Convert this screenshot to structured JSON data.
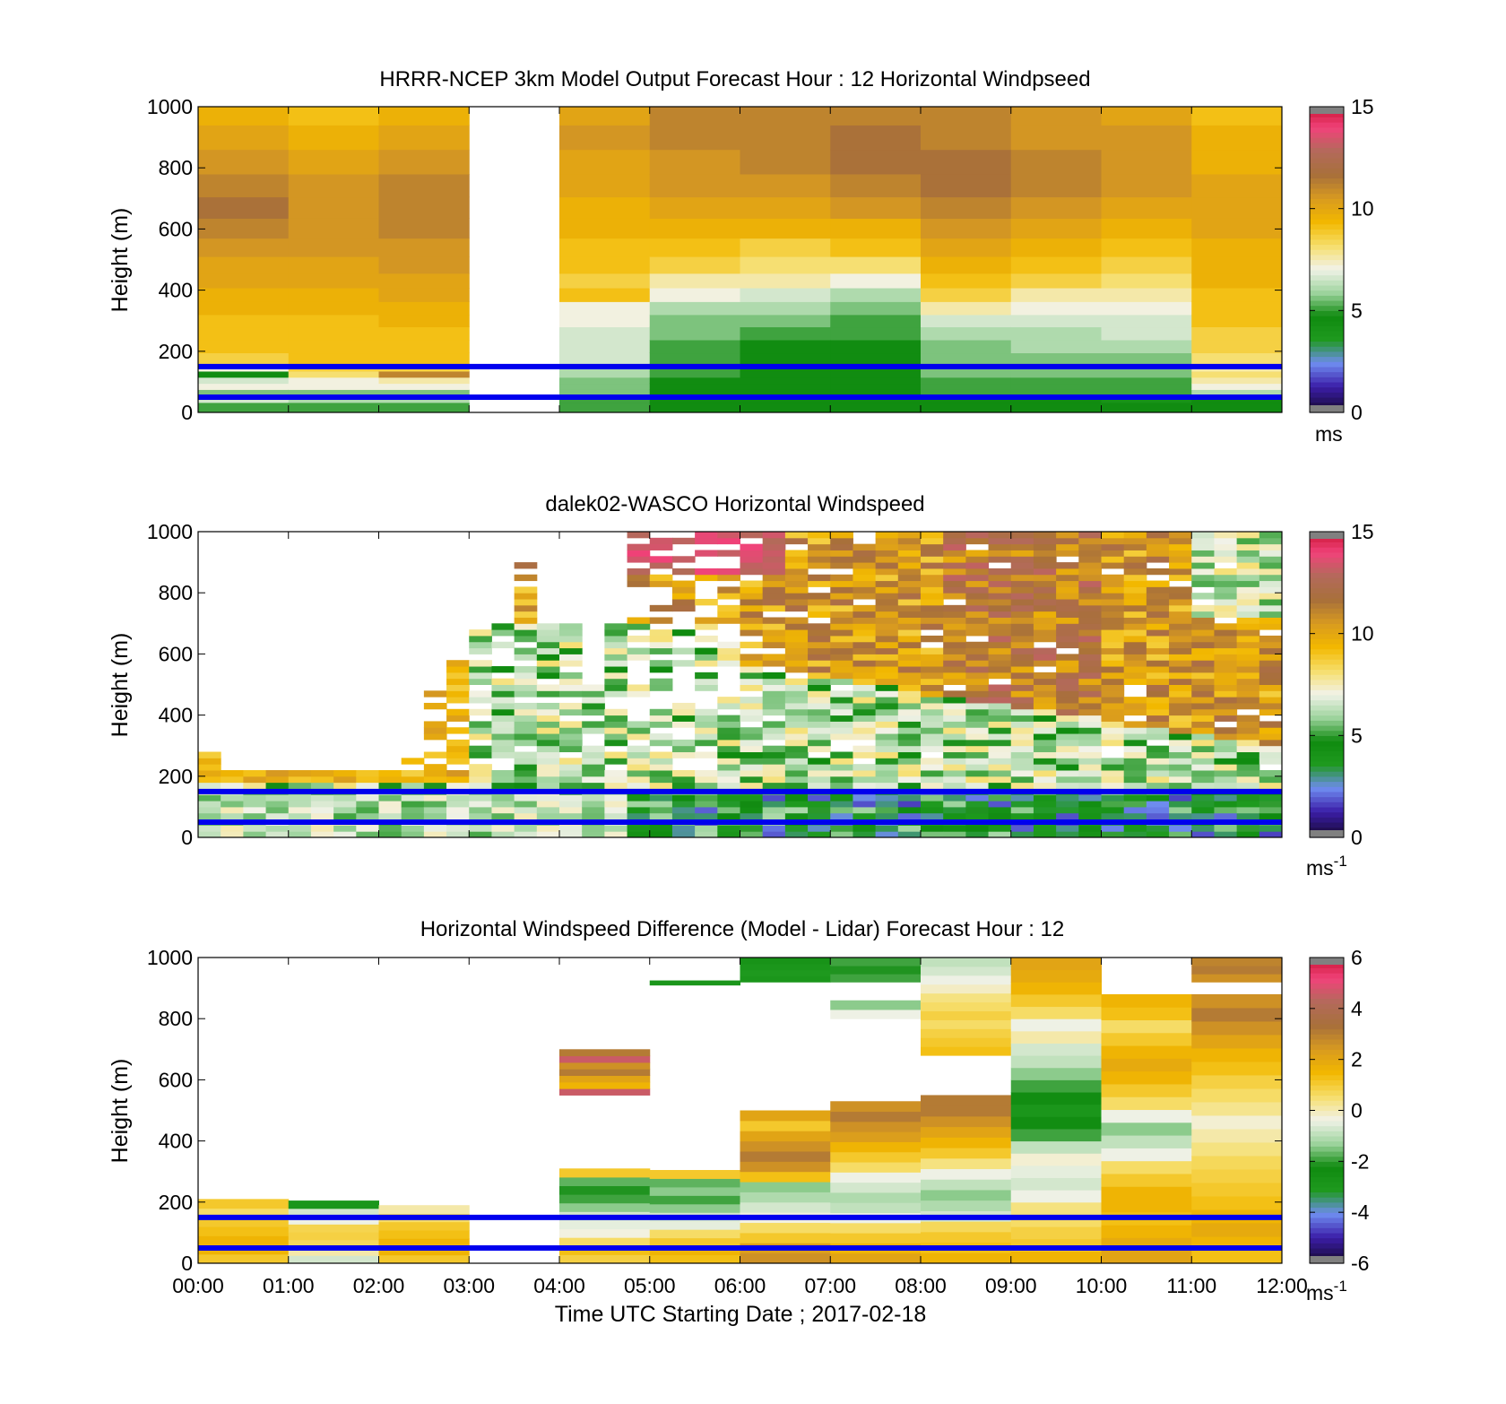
{
  "figure": {
    "xlabel": "Time UTC  Starting Date ; 2017-02-18",
    "x_ticks": [
      "00:00",
      "01:00",
      "02:00",
      "03:00",
      "04:00",
      "05:00",
      "06:00",
      "07:00",
      "08:00",
      "09:00",
      "10:00",
      "11:00",
      "12:00"
    ],
    "y_ticks": [
      "0",
      "200",
      "400",
      "600",
      "800",
      "1000"
    ],
    "ylabel": "Height (m)",
    "reference_lines": {
      "heights_m": [
        50,
        150
      ],
      "color": "#0000ee"
    }
  },
  "chart_data": [
    {
      "type": "heatmap",
      "title": "HRRR-NCEP 3km Model Output   Forecast Hour : 12 Horizontal Windpseed",
      "ylabel": "Height (m)",
      "xlim_hours": [
        0,
        12
      ],
      "ylim": [
        0,
        1000
      ],
      "colorbar": {
        "min": 0,
        "max": 15,
        "ticks": [
          "0",
          "5",
          "10",
          "15"
        ],
        "unit": "ms"
      },
      "colorscale": [
        "#1a0a3a",
        "#3b1ea8",
        "#6f8cf0",
        "#1f9a1f",
        "#0f8a0f",
        "#9ed49e",
        "#f2f2e8",
        "#f6de6a",
        "#f2b800",
        "#d89a20",
        "#a8703a",
        "#b36a5a",
        "#f0437a",
        "#c8102e"
      ],
      "layers_m": [
        20,
        45,
        65,
        85,
        105,
        125,
        145,
        175,
        215,
        260,
        300,
        340,
        385,
        430,
        480,
        540,
        600,
        670,
        740,
        820,
        900,
        980
      ],
      "columns": [
        {
          "hour": 0,
          "values": [
            5,
            6.5,
            5.5,
            7,
            6.5,
            4.5,
            7,
            8.5,
            9,
            9,
            9,
            9.5,
            9.5,
            10,
            10,
            10.5,
            11,
            11.5,
            11,
            10.5,
            10,
            9.5
          ]
        },
        {
          "hour": 1,
          "values": [
            5,
            6,
            5.5,
            7,
            7,
            8,
            8.5,
            9,
            9,
            9,
            9,
            9.5,
            9.5,
            10,
            10,
            10.5,
            10.5,
            10.5,
            10.5,
            10,
            9.5,
            9
          ]
        },
        {
          "hour": 2,
          "values": [
            5,
            6,
            5.5,
            7,
            7.5,
            11,
            8.5,
            9,
            9,
            9,
            9.5,
            9.5,
            10,
            10,
            10.5,
            10.5,
            11,
            11,
            11,
            10.5,
            10,
            9.5
          ]
        },
        {
          "hour": 3,
          "values": null
        },
        {
          "hour": 4,
          "values": [
            5,
            5,
            5.5,
            5.5,
            5.5,
            6,
            6,
            6.5,
            6.5,
            6.5,
            7,
            7,
            9,
            8.5,
            9,
            9,
            9.5,
            9.5,
            10,
            10,
            10.5,
            10
          ]
        },
        {
          "hour": 5,
          "values": [
            4.5,
            4.5,
            4.5,
            4.5,
            4.5,
            5,
            5,
            5,
            5,
            5.5,
            5.5,
            6,
            7,
            7.5,
            8.5,
            9,
            9.5,
            10,
            10.5,
            10.5,
            11,
            11
          ]
        },
        {
          "hour": 6,
          "values": [
            4.5,
            4.5,
            4.5,
            4.5,
            4.5,
            4.5,
            4.5,
            4.5,
            4.5,
            5,
            5.5,
            6,
            6.5,
            7.5,
            8,
            8.5,
            9.5,
            10,
            10.5,
            11,
            11,
            11
          ]
        },
        {
          "hour": 7,
          "values": [
            4.5,
            4.5,
            4.5,
            4.5,
            4.5,
            4.5,
            4.5,
            4.5,
            4.5,
            5,
            5,
            5.5,
            6,
            7,
            8,
            9,
            9.5,
            10.5,
            11,
            11.5,
            11.5,
            11
          ]
        },
        {
          "hour": 8,
          "values": [
            4.5,
            4.5,
            5,
            5,
            5,
            5.5,
            5.5,
            5.5,
            5.5,
            6,
            6.5,
            7.5,
            8.5,
            9,
            9.5,
            10,
            10.5,
            11,
            11.5,
            11.5,
            11,
            11
          ]
        },
        {
          "hour": 9,
          "values": [
            4.5,
            4.5,
            5,
            5,
            5,
            5.5,
            5.5,
            5.5,
            6,
            6,
            6.5,
            7,
            7.5,
            8.5,
            9,
            9.5,
            10,
            10.5,
            11,
            11,
            10.5,
            10.5
          ]
        },
        {
          "hour": 10,
          "values": [
            4.5,
            4,
            5,
            5,
            5,
            5.5,
            5.5,
            5.5,
            6,
            6.5,
            6.5,
            7,
            7.5,
            8,
            8.5,
            9,
            9.5,
            10,
            10.5,
            10.5,
            10.5,
            10
          ]
        },
        {
          "hour": 11,
          "values": [
            4.5,
            4.5,
            6,
            7,
            7.5,
            8,
            7.5,
            8,
            8.5,
            8.5,
            9,
            9,
            9,
            9.5,
            9.5,
            9.5,
            10,
            10,
            10,
            9.5,
            9.5,
            9
          ]
        }
      ]
    },
    {
      "type": "heatmap",
      "title": "dalek02-WASCO  Horizontal Windspeed",
      "ylabel": "Height (m)",
      "xlim_hours": [
        0,
        12
      ],
      "ylim": [
        0,
        1000
      ],
      "colorbar": {
        "min": 0,
        "max": 15,
        "ticks": [
          "0",
          "5",
          "10",
          "15"
        ],
        "unit": "ms",
        "unit_exponent": "-1"
      },
      "time_step_hours": 0.25,
      "height_step_m": 20,
      "coverage_top_m": [
        270,
        220,
        220,
        220,
        220,
        220,
        220,
        220,
        220,
        260,
        480,
        600,
        720,
        700,
        900,
        700,
        700,
        500,
        700,
        1000,
        1000,
        1000,
        1000,
        1000,
        1000,
        1000,
        1000,
        1000,
        1000,
        1000,
        1000,
        1000,
        1000,
        1000,
        1000,
        1000,
        1000,
        1000,
        1000,
        1000,
        1000,
        1000,
        1000,
        1000,
        1000,
        1000,
        1000,
        1000
      ],
      "fill_fraction": [
        1,
        1,
        1,
        1,
        1,
        1,
        1,
        1,
        1,
        0.7,
        0.55,
        0.6,
        0.7,
        0.8,
        0.75,
        0.7,
        0.8,
        0.8,
        0.8,
        0.55,
        0.5,
        0.55,
        0.6,
        0.55,
        0.8,
        0.82,
        0.85,
        0.85,
        0.9,
        0.9,
        0.92,
        0.93,
        0.95,
        0.95,
        0.95,
        0.95,
        0.95,
        0.95,
        0.95,
        0.93,
        0.95,
        0.93,
        0.93,
        0.95,
        0.95,
        0.95,
        0.9,
        0.9
      ],
      "description_profile": "near-surface 4-6 m/s greens with low-speed blue/purple patches after 05:00; above 200-400 m speeds rise to 9-13 m/s (orange to brown) after 06:00; scattered sparse returns 03:00-06:00 aloft"
    },
    {
      "type": "heatmap",
      "title": "Horizontal Windspeed Difference (Model - Lidar) Forecast Hour : 12",
      "ylabel": "Height (m)",
      "xlabel": "Time UTC  Starting Date ; 2017-02-18",
      "xlim_hours": [
        0,
        12
      ],
      "ylim": [
        0,
        1000
      ],
      "colorbar": {
        "min": -6,
        "max": 6,
        "ticks": [
          "-6",
          "-4",
          "-2",
          "0",
          "2",
          "4",
          "6"
        ],
        "unit": "ms",
        "unit_exponent": "-1"
      },
      "segments": [
        {
          "hour": 0,
          "from_m": 0,
          "to_m": 210,
          "values": [
            1,
            1.5,
            1.5,
            1.2,
            1,
            0.5,
            1
          ]
        },
        {
          "hour": 1,
          "from_m": 0,
          "to_m": 205,
          "values": [
            -0.8,
            0,
            0.6,
            0.8,
            0.7,
            -0.5,
            -0.8,
            -3
          ]
        },
        {
          "hour": 2,
          "from_m": 0,
          "to_m": 190,
          "values": [
            1,
            1.5,
            1.5,
            1.2,
            1,
            0.5,
            0
          ]
        },
        {
          "hour": 4,
          "from_m": 0,
          "to_m": 310,
          "values": [
            0.8,
            1.2,
            0.5,
            -0.4,
            -0.6,
            -0.8,
            -1.5,
            -2,
            -2.2,
            -1.8,
            1
          ]
        },
        {
          "hour": 4,
          "from_m": 550,
          "to_m": 700,
          "values": [
            4.5,
            1.5,
            2,
            3,
            2.5,
            4.5,
            3
          ]
        },
        {
          "hour": 5,
          "from_m": 0,
          "to_m": 305,
          "values": [
            1.2,
            1.5,
            1,
            0.5,
            -0.6,
            -0.8,
            -1.5,
            -2,
            -1.5,
            -1.8,
            1
          ]
        },
        {
          "hour": 5,
          "from_m": 910,
          "to_m": 925,
          "values": [
            -3
          ]
        },
        {
          "hour": 6,
          "from_m": 0,
          "to_m": 500,
          "values": [
            2.5,
            2.2,
            1,
            0.5,
            -0.4,
            -0.8,
            -1.2,
            -1.5,
            1.2,
            2.5,
            3,
            2.5,
            2,
            1,
            2
          ]
        },
        {
          "hour": 6,
          "from_m": 920,
          "to_m": 1000,
          "values": [
            -3,
            -3.2,
            -3,
            -2.8
          ]
        },
        {
          "hour": 7,
          "from_m": 0,
          "to_m": 530,
          "values": [
            2,
            1.5,
            1,
            0.5,
            -0.5,
            -1,
            -1.2,
            -0.8,
            -0.5,
            0.5,
            1,
            1.5,
            2.2,
            2.5,
            3,
            2.5
          ]
        },
        {
          "hour": 7,
          "from_m": 800,
          "to_m": 860,
          "values": [
            -0.5,
            -1.5
          ]
        },
        {
          "hour": 7,
          "from_m": 920,
          "to_m": 1000,
          "values": [
            -2,
            -2.2,
            -2
          ]
        },
        {
          "hour": 8,
          "from_m": 0,
          "to_m": 550,
          "values": [
            1.5,
            1.2,
            1,
            0.6,
            -0.8,
            -1.2,
            -1.5,
            -1,
            -0.5,
            0.3,
            1,
            1.5,
            2,
            2.5,
            3,
            3
          ]
        },
        {
          "hour": 8,
          "from_m": 680,
          "to_m": 1000,
          "values": [
            1.2,
            1,
            0.8,
            0.5,
            0.8,
            0.5,
            0.3,
            -0.2,
            -0.5,
            -0.8,
            -1
          ]
        },
        {
          "hour": 9,
          "from_m": 0,
          "to_m": 1000,
          "values": [
            1.5,
            1,
            0.8,
            0.5,
            0.3,
            -0.5,
            -0.8,
            -0.6,
            -0.3,
            -1,
            -2,
            -2.5,
            -3,
            -2.5,
            -2,
            -1.5,
            -1,
            -0.8,
            0,
            -0.5,
            0.5,
            1,
            1.5,
            1.8,
            2
          ]
        },
        {
          "hour": 10,
          "from_m": 0,
          "to_m": 880,
          "values": [
            2,
            1.8,
            1.5,
            1.2,
            1.5,
            1.5,
            1,
            0.5,
            -0.5,
            -1,
            -1.5,
            -0.5,
            0.5,
            1,
            1.5,
            1.8,
            1.5,
            1,
            0.5,
            1.2,
            1.5
          ]
        },
        {
          "hour": 11,
          "from_m": 0,
          "to_m": 880,
          "values": [
            1.2,
            1.5,
            1.8,
            1.5,
            1.2,
            1,
            0.8,
            0.6,
            0.3,
            0,
            -0.3,
            0.2,
            0.5,
            0.8,
            1.2,
            1.5,
            2,
            2.5,
            3,
            2.5
          ]
        },
        {
          "hour": 11,
          "from_m": 920,
          "to_m": 1000,
          "values": [
            2.5,
            3,
            2.8
          ]
        }
      ]
    }
  ]
}
